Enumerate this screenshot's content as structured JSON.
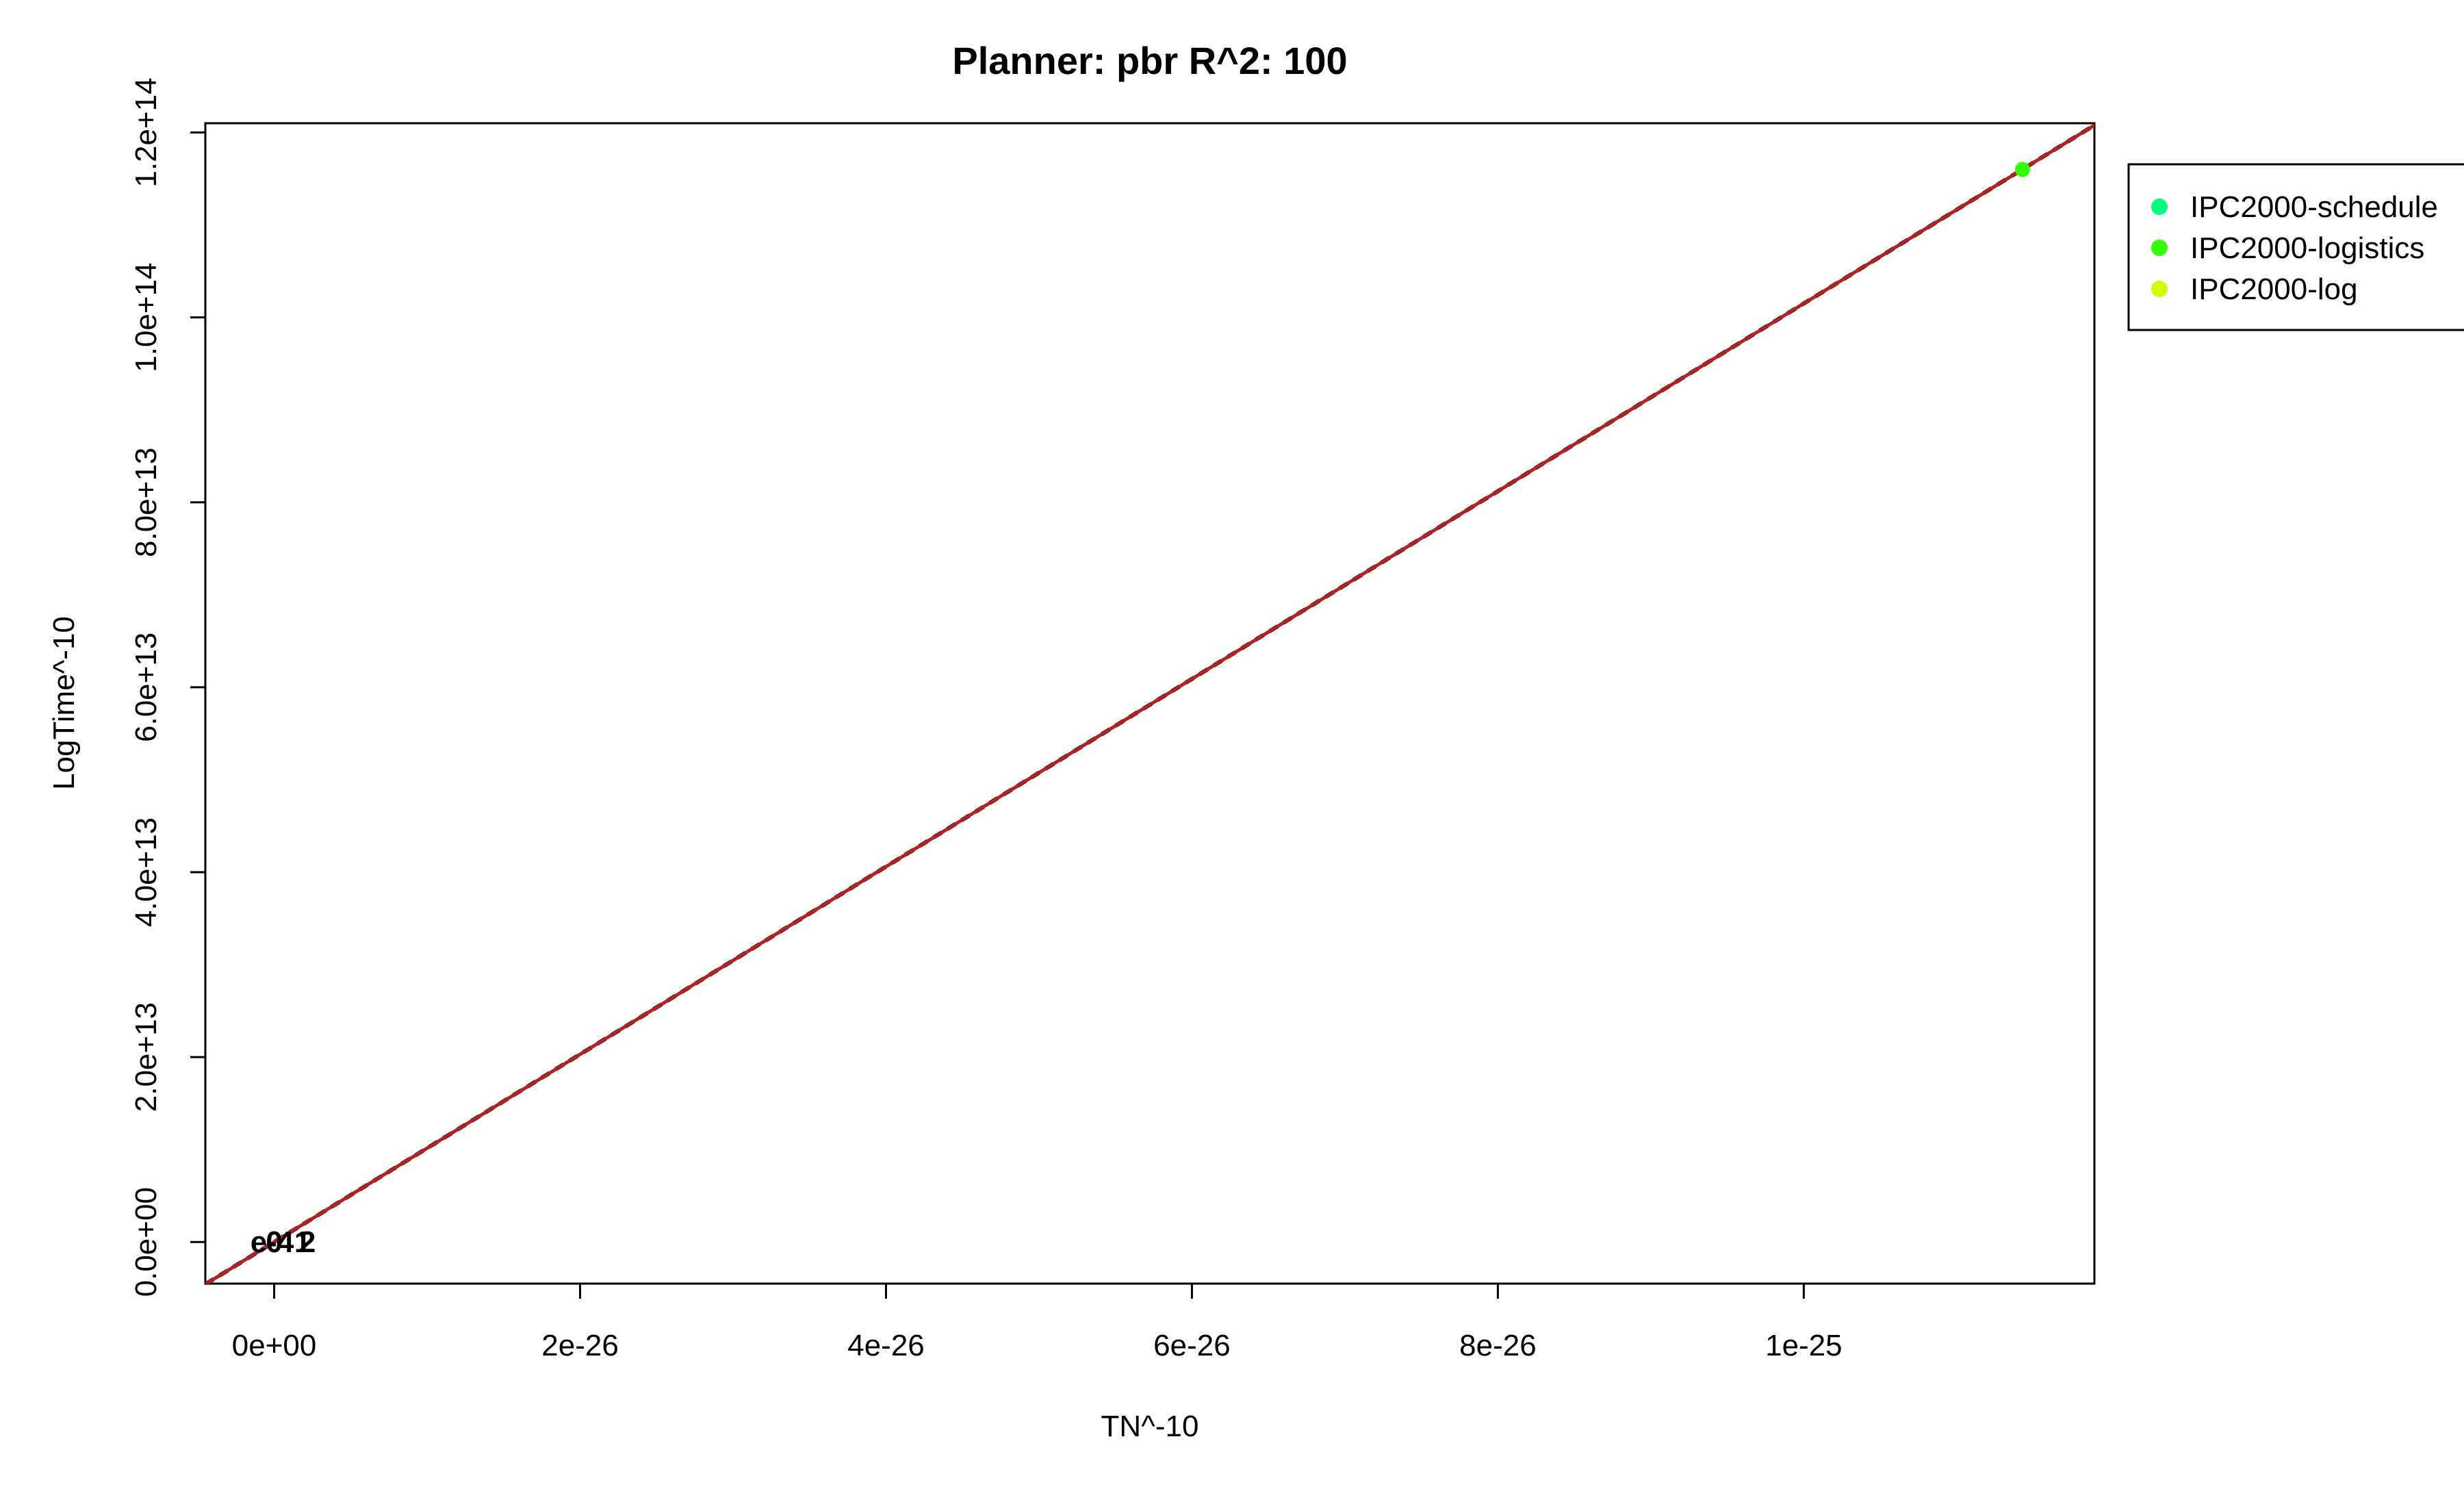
{
  "chart_data": {
    "type": "scatter",
    "title": "Planner: pbr R^2: 100",
    "xlabel": "TN^-10",
    "ylabel": "LogTime^-10",
    "xlim": [
      -4.5e-27,
      1.19e-25
    ],
    "ylim": [
      -4500000000000.0,
      121000000000000.0
    ],
    "x_ticks": [
      {
        "value": 0,
        "label": "0e+00"
      },
      {
        "value": 2e-26,
        "label": "2e-26"
      },
      {
        "value": 4e-26,
        "label": "4e-26"
      },
      {
        "value": 6e-26,
        "label": "6e-26"
      },
      {
        "value": 8e-26,
        "label": "8e-26"
      },
      {
        "value": 1e-25,
        "label": "1e-25"
      }
    ],
    "y_ticks": [
      {
        "value": 0,
        "label": "0.0e+00"
      },
      {
        "value": 20000000000000.0,
        "label": "2.0e+13"
      },
      {
        "value": 40000000000000.0,
        "label": "4.0e+13"
      },
      {
        "value": 60000000000000.0,
        "label": "6.0e+13"
      },
      {
        "value": 80000000000000.0,
        "label": "8.0e+13"
      },
      {
        "value": 100000000000000.0,
        "label": "1.0e+14"
      },
      {
        "value": 120000000000000.0,
        "label": "1.2e+14"
      }
    ],
    "grid": false,
    "legend_position": "right",
    "series": [
      {
        "name": "IPC2000-schedule",
        "color": "#00ff80",
        "points": []
      },
      {
        "name": "IPC2000-logistics",
        "color": "#33ff00",
        "points": [
          {
            "x": 1.143e-25,
            "y": 116000000000000.0
          }
        ]
      },
      {
        "name": "IPC2000-log",
        "color": "#ccff00",
        "points": []
      }
    ],
    "annotations": [
      {
        "text": "e-4",
        "x": 0,
        "y": 0,
        "color": "#000000"
      },
      {
        "text": "0",
        "x": 0,
        "y": 0,
        "color": "#00a050"
      },
      {
        "text": "1",
        "x": 1.6e-28,
        "y": 0,
        "color": "#000000"
      },
      {
        "text": "2",
        "x": 1.6e-28,
        "y": 0,
        "color": "#000000"
      }
    ],
    "fit_lines": [
      {
        "color": "#000000",
        "dashed": true,
        "slope": 1.015e+39,
        "intercept": 0
      },
      {
        "color": "#b22222",
        "dashed": false,
        "slope": 1.015e+39,
        "intercept": 0
      }
    ]
  }
}
